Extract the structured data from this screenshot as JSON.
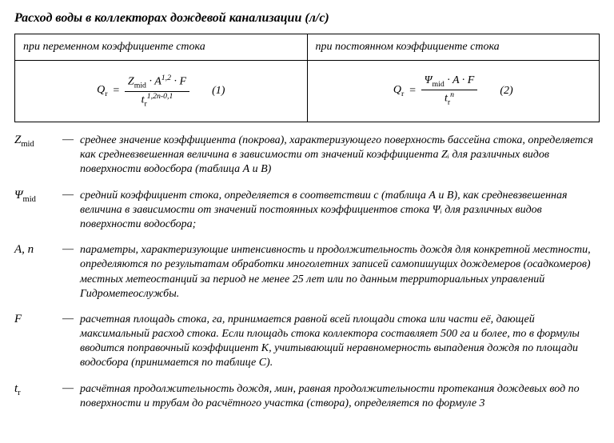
{
  "title": "Расход воды в коллекторах дождевой канализации (л/с)",
  "table": {
    "head1": "при переменном коэффициенте стока",
    "head2": "при постоянном коэффициенте стока",
    "f1": {
      "lhs": "Q",
      "lhs_sub": "r",
      "num_a": "Z",
      "num_a_sub": "mid",
      "num_b": " · A",
      "num_b_sup": "1,2",
      "num_c": " · F",
      "den_a": "t",
      "den_a_sub": "r",
      "den_sup": "1,2n-0,1",
      "marker": "(1)"
    },
    "f2": {
      "lhs": "Q",
      "lhs_sub": "r",
      "num_a": "Ψ",
      "num_a_sub": "mid",
      "num_b": " · A · F",
      "den_a": "t",
      "den_a_sub": "r",
      "den_sup": "n",
      "marker": "(2)"
    }
  },
  "defs": [
    {
      "sym": "Z",
      "sub": "mid",
      "sep": "—",
      "text": "среднее значение коэффициента (покрова), характеризующего поверхность бассейна стока, определяется как средневзвешенная величина в зависимости от значений коэффициента Zᵢ для различных видов поверхности водосбора (таблица А и В)"
    },
    {
      "sym": "Ψ",
      "sub": "mid",
      "sep": "—",
      "text": "средний коэффициент стока, определяется в соответствии с (таблица А и В), как средневзвешенная величина в зависимости от значений постоянных коэффициентов стока Ψᵢ для различных видов поверхности водосбора;"
    },
    {
      "sym": "A, n",
      "sub": "",
      "sep": "—",
      "text": "параметры, характеризующие интенсивность и продолжительность дождя для конкретной местности, определяются по результатам обработки многолетних записей самопишущих дождемеров (осадкомеров) местных метеостанций за период не менее 25 лет или по данным территориальных управлений Гидрометеослужбы."
    },
    {
      "sym": "F",
      "sub": "",
      "sep": "—",
      "text": "расчетная площадь стока, га, принимается равной всей площади стока или части её, дающей максимальный расход стока. Если площадь стока коллектора составляет 500 га и более, то в формулы вводится поправочный коэффициент К, учитывающий неравномерность выпадения дождя по площади водосбора (принимается по таблице С)."
    },
    {
      "sym": "t",
      "sub": "r",
      "sep": "—",
      "text": "расчётная продолжительность дождя, мин, равная продолжительности протекания дождевых вод по поверхности и трубам до расчётного участка (створа), определяется по формуле 3"
    }
  ]
}
